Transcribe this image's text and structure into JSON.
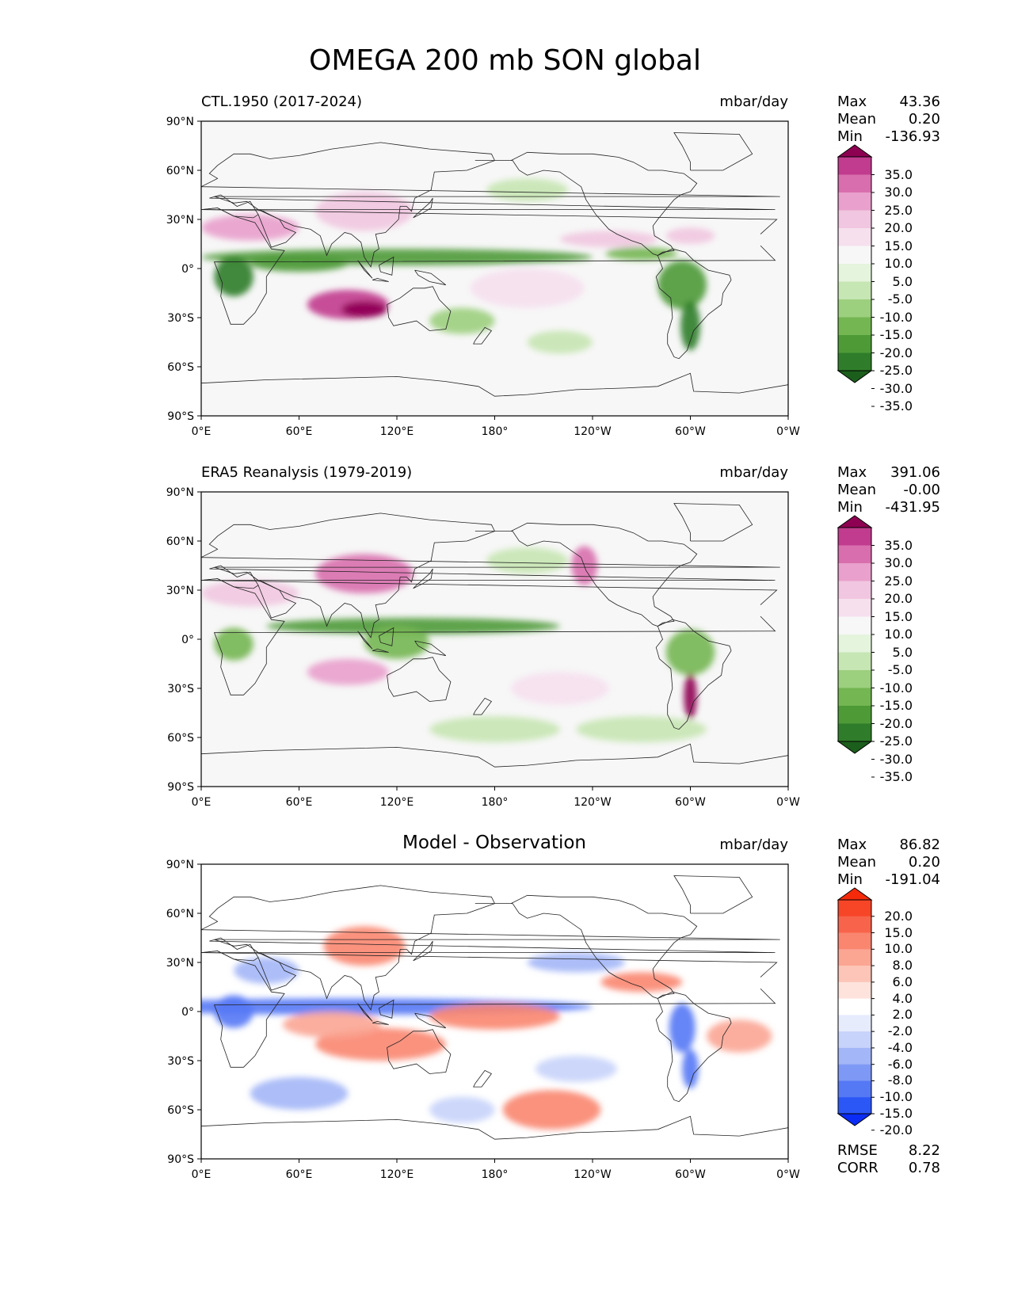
{
  "title": "OMEGA 200 mb SON global",
  "x_ticks": [
    "0°E",
    "60°E",
    "120°E",
    "180°",
    "120°W",
    "60°W",
    "0°W"
  ],
  "y_ticks": [
    "90°N",
    "60°N",
    "30°N",
    "0°",
    "30°S",
    "60°S",
    "90°S"
  ],
  "colors": {
    "prgn": [
      "#1c5e1c",
      "#2f7d2a",
      "#4d9a37",
      "#74b651",
      "#9ccf7e",
      "#c6e6b3",
      "#e5f4dd",
      "#f7f7f7",
      "#f6e0ee",
      "#f1c6e0",
      "#e9a0cc",
      "#d86ead",
      "#c13c8e",
      "#8e0152"
    ],
    "bwr": [
      "#0b2cf5",
      "#2c57f7",
      "#5578f5",
      "#7e99f5",
      "#a3b6f7",
      "#c7d3fa",
      "#e7ecfd",
      "#ffffff",
      "#fde3dc",
      "#fcc5b8",
      "#fba593",
      "#fa8670",
      "#f8644b",
      "#f74528",
      "#f52a0a"
    ]
  },
  "panels": [
    {
      "title": "CTL.1950 (2017-2024)",
      "units": "mbar/day",
      "stats": [
        {
          "label": "Max",
          "value": "43.36"
        },
        {
          "label": "Mean",
          "value": "0.20"
        },
        {
          "label": "Min",
          "value": "-136.93"
        }
      ],
      "colorbar_labels": [
        "35.0",
        "30.0",
        "25.0",
        "20.0",
        "15.0",
        "10.0",
        "5.0",
        "-5.0",
        "-10.0",
        "-15.0",
        "-20.0",
        "-25.0",
        "-30.0",
        "-35.0"
      ]
    },
    {
      "title": "ERA5 Reanalysis (1979-2019)",
      "units": "mbar/day",
      "stats": [
        {
          "label": "Max",
          "value": "391.06"
        },
        {
          "label": "Mean",
          "value": "-0.00"
        },
        {
          "label": "Min",
          "value": "-431.95"
        }
      ],
      "colorbar_labels": [
        "35.0",
        "30.0",
        "25.0",
        "20.0",
        "15.0",
        "10.0",
        "5.0",
        "-5.0",
        "-10.0",
        "-15.0",
        "-20.0",
        "-25.0",
        "-30.0",
        "-35.0"
      ]
    },
    {
      "title": "Model - Observation",
      "units": "mbar/day",
      "stats": [
        {
          "label": "Max",
          "value": "86.82"
        },
        {
          "label": "Mean",
          "value": "0.20"
        },
        {
          "label": "Min",
          "value": "-191.04"
        }
      ],
      "colorbar_labels": [
        "20.0",
        "15.0",
        "10.0",
        "8.0",
        "6.0",
        "4.0",
        "2.0",
        "-2.0",
        "-4.0",
        "-6.0",
        "-8.0",
        "-10.0",
        "-15.0",
        "-20.0"
      ],
      "metrics": [
        {
          "label": "RMSE",
          "value": "8.22"
        },
        {
          "label": "CORR",
          "value": "0.78"
        }
      ]
    }
  ]
}
